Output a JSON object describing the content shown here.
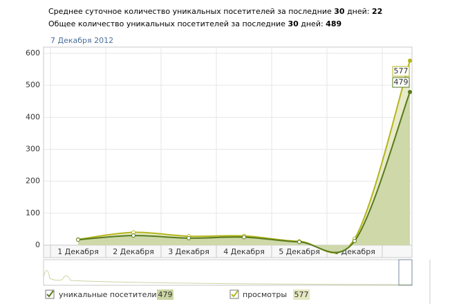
{
  "header": {
    "line1": {
      "text": "Среднее суточное количество уникальных посетителей за последние",
      "days": 30,
      "mid": "дней:",
      "value": 22
    },
    "line2": {
      "text": "Общее количество уникальных посетителей за последние",
      "days": 30,
      "mid": "дней:",
      "value": 489
    }
  },
  "chart_data": {
    "type": "area",
    "hover_date": "7 Декабря 2012",
    "categories": [
      "1 Декабря",
      "2 Декабря",
      "3 Декабря",
      "4 Декабря",
      "5 Декабря",
      "6 Декабря",
      null
    ],
    "series": [
      {
        "name": "просмотры",
        "color": "#b5b51c",
        "fill": "#e4e7c2",
        "values": [
          18,
          40,
          28,
          29,
          12,
          20,
          577
        ]
      },
      {
        "name": "уникальные посетители",
        "color": "#577a1c",
        "fill": "#c9d5a3",
        "values": [
          17,
          30,
          22,
          25,
          10,
          13,
          479
        ]
      }
    ],
    "ylim": [
      0,
      600
    ],
    "yticks": [
      0,
      100,
      200,
      300,
      400,
      500,
      600
    ],
    "grid": true
  }
}
